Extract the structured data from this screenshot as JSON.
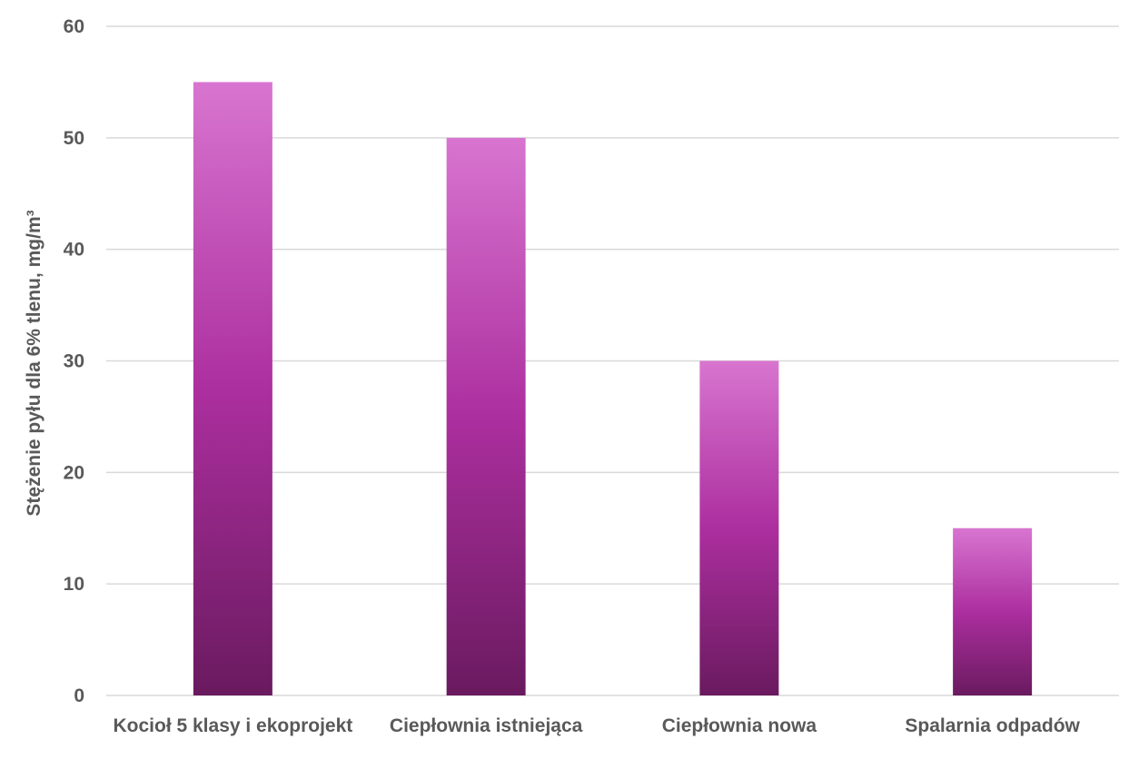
{
  "chart_data": {
    "type": "bar",
    "title": "",
    "xlabel": "",
    "ylabel": "Stężenie pyłu dla 6% tlenu, mg/m³",
    "categories": [
      "Kocioł 5 klasy i ekoprojekt",
      "Ciepłownia istniejąca",
      "Ciepłownia nowa",
      "Spalarnia odpadów"
    ],
    "values": [
      55,
      50,
      30,
      15
    ],
    "ylim": [
      0,
      60
    ],
    "yticks": [
      0,
      10,
      20,
      30,
      40,
      50,
      60
    ],
    "grid": true,
    "legend": "none",
    "colors": {
      "bar_top": "#d875d0",
      "bar_middle": "#ac2f9f",
      "bar_bottom": "#6a1a5f",
      "grid": "#d9d9d9",
      "axis_text": "#595959"
    }
  }
}
